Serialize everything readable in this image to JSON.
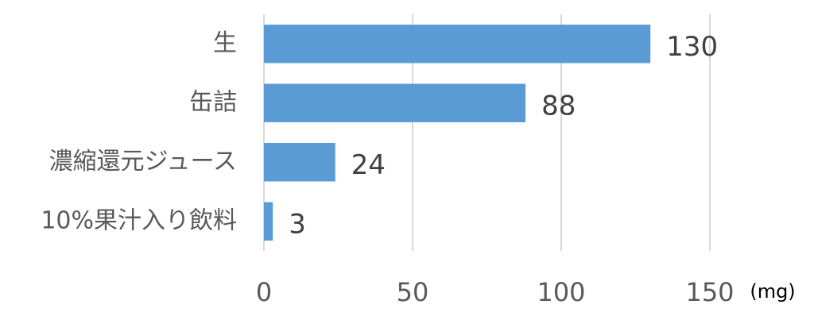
{
  "chart_data": {
    "type": "bar",
    "orientation": "horizontal",
    "categories": [
      "生",
      "缶詰",
      "濃縮還元ジュース",
      "10%果汁入り飲料"
    ],
    "values": [
      130,
      88,
      24,
      3
    ],
    "color": "#5b9bd5",
    "xlim": [
      0,
      150
    ],
    "xticks": [
      0,
      50,
      100,
      150
    ],
    "xlabel": "(mg)",
    "grid": true
  }
}
